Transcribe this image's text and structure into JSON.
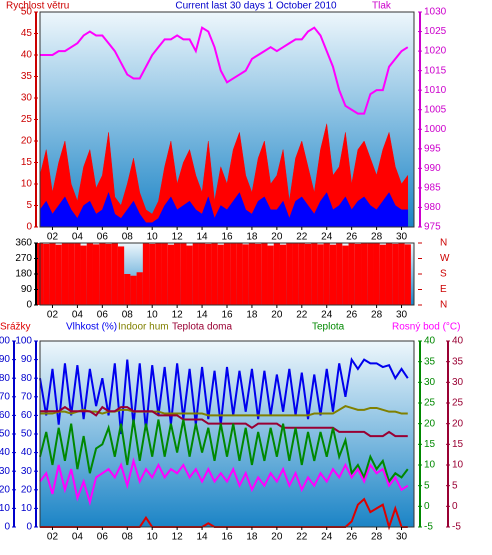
{
  "chart_data": [
    {
      "type": "line",
      "title": "Current last 30 days 1 October 2010",
      "ylabel": "Rychlost větru",
      "y2label": "Tlak",
      "label_colors": {
        "title": "#0000cc",
        "ylabel": "#cc0000",
        "y2label": "#cc00cc"
      },
      "x": [
        1,
        1.5,
        2,
        2.5,
        3,
        3.5,
        4,
        4.5,
        5,
        5.5,
        6,
        6.5,
        7,
        7.5,
        8,
        8.5,
        9,
        9.5,
        10,
        10.5,
        11,
        11.5,
        12,
        12.5,
        13,
        13.5,
        14,
        14.5,
        15,
        15.5,
        16,
        16.5,
        17,
        17.5,
        18,
        18.5,
        19,
        19.5,
        20,
        20.5,
        21,
        21.5,
        22,
        22.5,
        23,
        23.5,
        24,
        24.5,
        25,
        25.5,
        26,
        26.5,
        27,
        27.5,
        28,
        28.5,
        29,
        29.5,
        30,
        30.5
      ],
      "xlim": [
        1,
        31
      ],
      "xticks": [
        {
          "value": 2,
          "label": "02"
        },
        {
          "value": 4,
          "label": "04"
        },
        {
          "value": 6,
          "label": "06"
        },
        {
          "value": 8,
          "label": "08"
        },
        {
          "value": 10,
          "label": "10"
        },
        {
          "value": 12,
          "label": "12"
        },
        {
          "value": 14,
          "label": "14"
        },
        {
          "value": 16,
          "label": "16"
        },
        {
          "value": 18,
          "label": "18"
        },
        {
          "value": 20,
          "label": "20"
        },
        {
          "value": 22,
          "label": "22"
        },
        {
          "value": 24,
          "label": "24"
        },
        {
          "value": 26,
          "label": "26"
        },
        {
          "value": 28,
          "label": "28"
        },
        {
          "value": 30,
          "label": "30"
        }
      ],
      "ylim": [
        0,
        50
      ],
      "yticks": [
        0,
        5,
        10,
        15,
        20,
        25,
        30,
        35,
        40,
        45,
        50
      ],
      "y2lim": [
        975,
        1030
      ],
      "y2ticks": [
        975,
        980,
        985,
        990,
        995,
        1000,
        1005,
        1010,
        1015,
        1020,
        1025,
        1030
      ],
      "series": [
        {
          "color": "#ff0000",
          "style": "area",
          "values": [
            12,
            18,
            8,
            15,
            20,
            10,
            6,
            14,
            18,
            9,
            12,
            22,
            7,
            5,
            10,
            16,
            8,
            4,
            3,
            6,
            14,
            20,
            10,
            15,
            18,
            12,
            8,
            20,
            6,
            14,
            10,
            18,
            22,
            12,
            8,
            16,
            20,
            10,
            12,
            18,
            6,
            16,
            20,
            14,
            8,
            18,
            24,
            12,
            14,
            22,
            10,
            18,
            20,
            16,
            12,
            18,
            22,
            14,
            10,
            12
          ]
        },
        {
          "color": "#0000ff",
          "style": "area",
          "values": [
            4,
            6,
            3,
            5,
            7,
            4,
            2,
            5,
            6,
            3,
            4,
            8,
            3,
            2,
            4,
            6,
            3,
            1,
            1,
            2,
            5,
            7,
            4,
            5,
            6,
            4,
            3,
            7,
            2,
            5,
            4,
            6,
            8,
            4,
            3,
            6,
            7,
            4,
            4,
            6,
            2,
            6,
            7,
            5,
            3,
            6,
            8,
            4,
            5,
            7,
            4,
            6,
            7,
            5,
            4,
            6,
            8,
            5,
            4,
            4
          ]
        },
        {
          "color": "#ff00ff",
          "style": "line",
          "axis": "y2",
          "values": [
            1019,
            1019,
            1019,
            1020,
            1020,
            1021,
            1022,
            1024,
            1025,
            1024,
            1024,
            1022,
            1020,
            1017,
            1014,
            1013,
            1013,
            1016,
            1019,
            1021,
            1023,
            1023,
            1024,
            1023,
            1023,
            1020,
            1026,
            1025,
            1021,
            1015,
            1012,
            1013,
            1014,
            1015,
            1018,
            1019,
            1020,
            1021,
            1020,
            1021,
            1022,
            1023,
            1023,
            1025,
            1026,
            1024,
            1020,
            1016,
            1010,
            1006,
            1005,
            1004,
            1004,
            1009,
            1010,
            1010,
            1016,
            1018,
            1020,
            1021
          ]
        }
      ]
    },
    {
      "type": "bar",
      "x": [
        1,
        1.5,
        2,
        2.5,
        3,
        3.5,
        4,
        4.5,
        5,
        5.5,
        6,
        6.5,
        7,
        7.5,
        8,
        8.5,
        9,
        9.5,
        10,
        10.5,
        11,
        11.5,
        12,
        12.5,
        13,
        13.5,
        14,
        14.5,
        15,
        15.5,
        16,
        16.5,
        17,
        17.5,
        18,
        18.5,
        19,
        19.5,
        20,
        20.5,
        21,
        21.5,
        22,
        22.5,
        23,
        23.5,
        24,
        24.5,
        25,
        25.5,
        26,
        26.5,
        27,
        27.5,
        28,
        28.5,
        29,
        29.5,
        30,
        30.5
      ],
      "xlim": [
        1,
        31
      ],
      "xticks": [
        {
          "value": 2,
          "label": "02"
        },
        {
          "value": 4,
          "label": "04"
        },
        {
          "value": 6,
          "label": "06"
        },
        {
          "value": 8,
          "label": "08"
        },
        {
          "value": 10,
          "label": "10"
        },
        {
          "value": 12,
          "label": "12"
        },
        {
          "value": 14,
          "label": "14"
        },
        {
          "value": 16,
          "label": "16"
        },
        {
          "value": 18,
          "label": "18"
        },
        {
          "value": 20,
          "label": "20"
        },
        {
          "value": 22,
          "label": "22"
        },
        {
          "value": 24,
          "label": "24"
        },
        {
          "value": 26,
          "label": "26"
        },
        {
          "value": 28,
          "label": "28"
        },
        {
          "value": 30,
          "label": "30"
        }
      ],
      "ylim": [
        0,
        360
      ],
      "yticks": [
        0,
        90,
        180,
        270,
        360
      ],
      "y2lim": [
        0,
        360
      ],
      "y2ticks": [
        {
          "value": 0,
          "label": "N"
        },
        {
          "value": 90,
          "label": "E"
        },
        {
          "value": 180,
          "label": "S"
        },
        {
          "value": 270,
          "label": "W"
        },
        {
          "value": 360,
          "label": "N"
        }
      ],
      "series": [
        {
          "color": "#ff0000",
          "values": [
            360,
            355,
            360,
            350,
            360,
            358,
            360,
            345,
            360,
            352,
            360,
            355,
            360,
            340,
            180,
            170,
            190,
            360,
            355,
            360,
            360,
            350,
            360,
            358,
            345,
            360,
            360,
            355,
            360,
            350,
            360,
            358,
            360,
            352,
            360,
            355,
            360,
            345,
            360,
            350,
            360,
            358,
            360,
            355,
            360,
            352,
            360,
            350,
            360,
            345,
            360,
            355,
            360,
            358,
            360,
            350,
            360,
            355,
            360,
            352
          ]
        }
      ]
    },
    {
      "type": "line",
      "x": [
        1,
        1.5,
        2,
        2.5,
        3,
        3.5,
        4,
        4.5,
        5,
        5.5,
        6,
        6.5,
        7,
        7.5,
        8,
        8.5,
        9,
        9.5,
        10,
        10.5,
        11,
        11.5,
        12,
        12.5,
        13,
        13.5,
        14,
        14.5,
        15,
        15.5,
        16,
        16.5,
        17,
        17.5,
        18,
        18.5,
        19,
        19.5,
        20,
        20.5,
        21,
        21.5,
        22,
        22.5,
        23,
        23.5,
        24,
        24.5,
        25,
        25.5,
        26,
        26.5,
        27,
        27.5,
        28,
        28.5,
        29,
        29.5,
        30,
        30.5
      ],
      "xlim": [
        1,
        31
      ],
      "xticks": [
        {
          "value": 2,
          "label": "02"
        },
        {
          "value": 4,
          "label": "04"
        },
        {
          "value": 6,
          "label": "06"
        },
        {
          "value": 8,
          "label": "08"
        },
        {
          "value": 10,
          "label": "10"
        },
        {
          "value": 12,
          "label": "12"
        },
        {
          "value": 14,
          "label": "14"
        },
        {
          "value": 16,
          "label": "16"
        },
        {
          "value": 18,
          "label": "18"
        },
        {
          "value": 20,
          "label": "20"
        },
        {
          "value": 22,
          "label": "22"
        },
        {
          "value": 24,
          "label": "24"
        },
        {
          "value": 26,
          "label": "26"
        },
        {
          "value": 28,
          "label": "28"
        },
        {
          "value": 30,
          "label": "30"
        }
      ],
      "ylim": [
        0,
        100
      ],
      "yticks": [
        0,
        10,
        20,
        30,
        40,
        50,
        60,
        70,
        80,
        90,
        100
      ],
      "y2lim": [
        -5,
        40
      ],
      "y2ticks": [
        -5,
        0,
        5,
        10,
        15,
        20,
        25,
        30,
        35,
        40
      ],
      "series": [
        {
          "name": "Srážky",
          "color": "#dd0000",
          "style": "line",
          "values": [
            0,
            0,
            0,
            0,
            0,
            0,
            0,
            0,
            0,
            0,
            0,
            0,
            0,
            0,
            0,
            0,
            0,
            5,
            0,
            0,
            0,
            0,
            0,
            0,
            0,
            0,
            0,
            2,
            0,
            0,
            0,
            0,
            0,
            0,
            0,
            0,
            0,
            0,
            0,
            0,
            0,
            0,
            0,
            0,
            0,
            0,
            0,
            0,
            0,
            0,
            3,
            12,
            15,
            8,
            10,
            12,
            0,
            10,
            0,
            0
          ]
        },
        {
          "name": "Vlhkost (%)",
          "color": "#0000ee",
          "style": "line",
          "values": [
            80,
            60,
            85,
            55,
            88,
            60,
            87,
            58,
            85,
            65,
            80,
            60,
            88,
            50,
            90,
            55,
            88,
            52,
            87,
            60,
            86,
            55,
            88,
            58,
            85,
            55,
            86,
            58,
            84,
            55,
            86,
            60,
            84,
            62,
            85,
            58,
            84,
            60,
            82,
            62,
            85,
            60,
            83,
            58,
            82,
            60,
            85,
            62,
            88,
            70,
            90,
            85,
            90,
            88,
            88,
            86,
            87,
            80,
            85,
            80
          ]
        },
        {
          "name": "Indoor hum",
          "color": "#808000",
          "style": "line",
          "values": [
            61,
            61,
            61,
            62,
            62,
            61,
            62,
            63,
            62,
            62,
            61,
            62,
            62,
            63,
            63,
            62,
            62,
            62,
            62,
            62,
            61,
            61,
            61,
            61,
            61,
            61,
            61,
            60,
            60,
            60,
            60,
            60,
            60,
            60,
            60,
            60,
            60,
            60,
            60,
            60,
            60,
            60,
            60,
            60,
            61,
            61,
            61,
            61,
            63,
            65,
            64,
            63,
            63,
            64,
            64,
            63,
            62,
            62,
            61,
            61
          ]
        },
        {
          "name": "Teplota doma",
          "color": "#990033",
          "style": "line",
          "axis": "y2",
          "values": [
            23,
            23,
            23,
            23,
            24,
            23,
            23,
            23,
            23,
            22,
            24,
            23,
            23,
            24,
            24,
            23,
            23,
            23,
            23,
            22,
            22,
            22,
            22,
            21,
            21,
            21,
            21,
            20,
            20,
            20,
            20,
            20,
            20,
            20,
            19,
            20,
            20,
            20,
            20,
            19,
            19,
            19,
            19,
            19,
            19,
            19,
            19,
            19,
            18,
            18,
            18,
            18,
            18,
            17,
            17,
            17,
            18,
            17,
            17,
            17
          ]
        },
        {
          "name": "Teplota",
          "color": "#008800",
          "style": "line",
          "axis": "y2",
          "values": [
            12,
            18,
            10,
            19,
            11,
            20,
            9,
            17,
            8,
            14,
            15,
            19,
            12,
            20,
            10,
            21,
            11,
            20,
            12,
            21,
            12,
            20,
            13,
            21,
            12,
            20,
            13,
            19,
            11,
            20,
            12,
            20,
            11,
            19,
            10,
            18,
            11,
            19,
            12,
            20,
            11,
            19,
            10,
            18,
            11,
            18,
            12,
            19,
            12,
            16,
            8,
            10,
            7,
            12,
            9,
            11,
            6,
            8,
            7,
            9
          ]
        },
        {
          "name": "Rosný bod (°C)",
          "color": "#ff00ff",
          "style": "line",
          "axis": "y2",
          "values": [
            6,
            8,
            3,
            10,
            4,
            9,
            2,
            6,
            1,
            7,
            8,
            9,
            7,
            10,
            5,
            11,
            6,
            9,
            7,
            10,
            7,
            9,
            8,
            10,
            7,
            9,
            6,
            9,
            6,
            8,
            6,
            9,
            5,
            8,
            4,
            7,
            5,
            8,
            6,
            9,
            5,
            8,
            4,
            7,
            5,
            8,
            6,
            9,
            7,
            10,
            7,
            9,
            6,
            10,
            8,
            9,
            5,
            7,
            4,
            5
          ]
        }
      ]
    }
  ]
}
